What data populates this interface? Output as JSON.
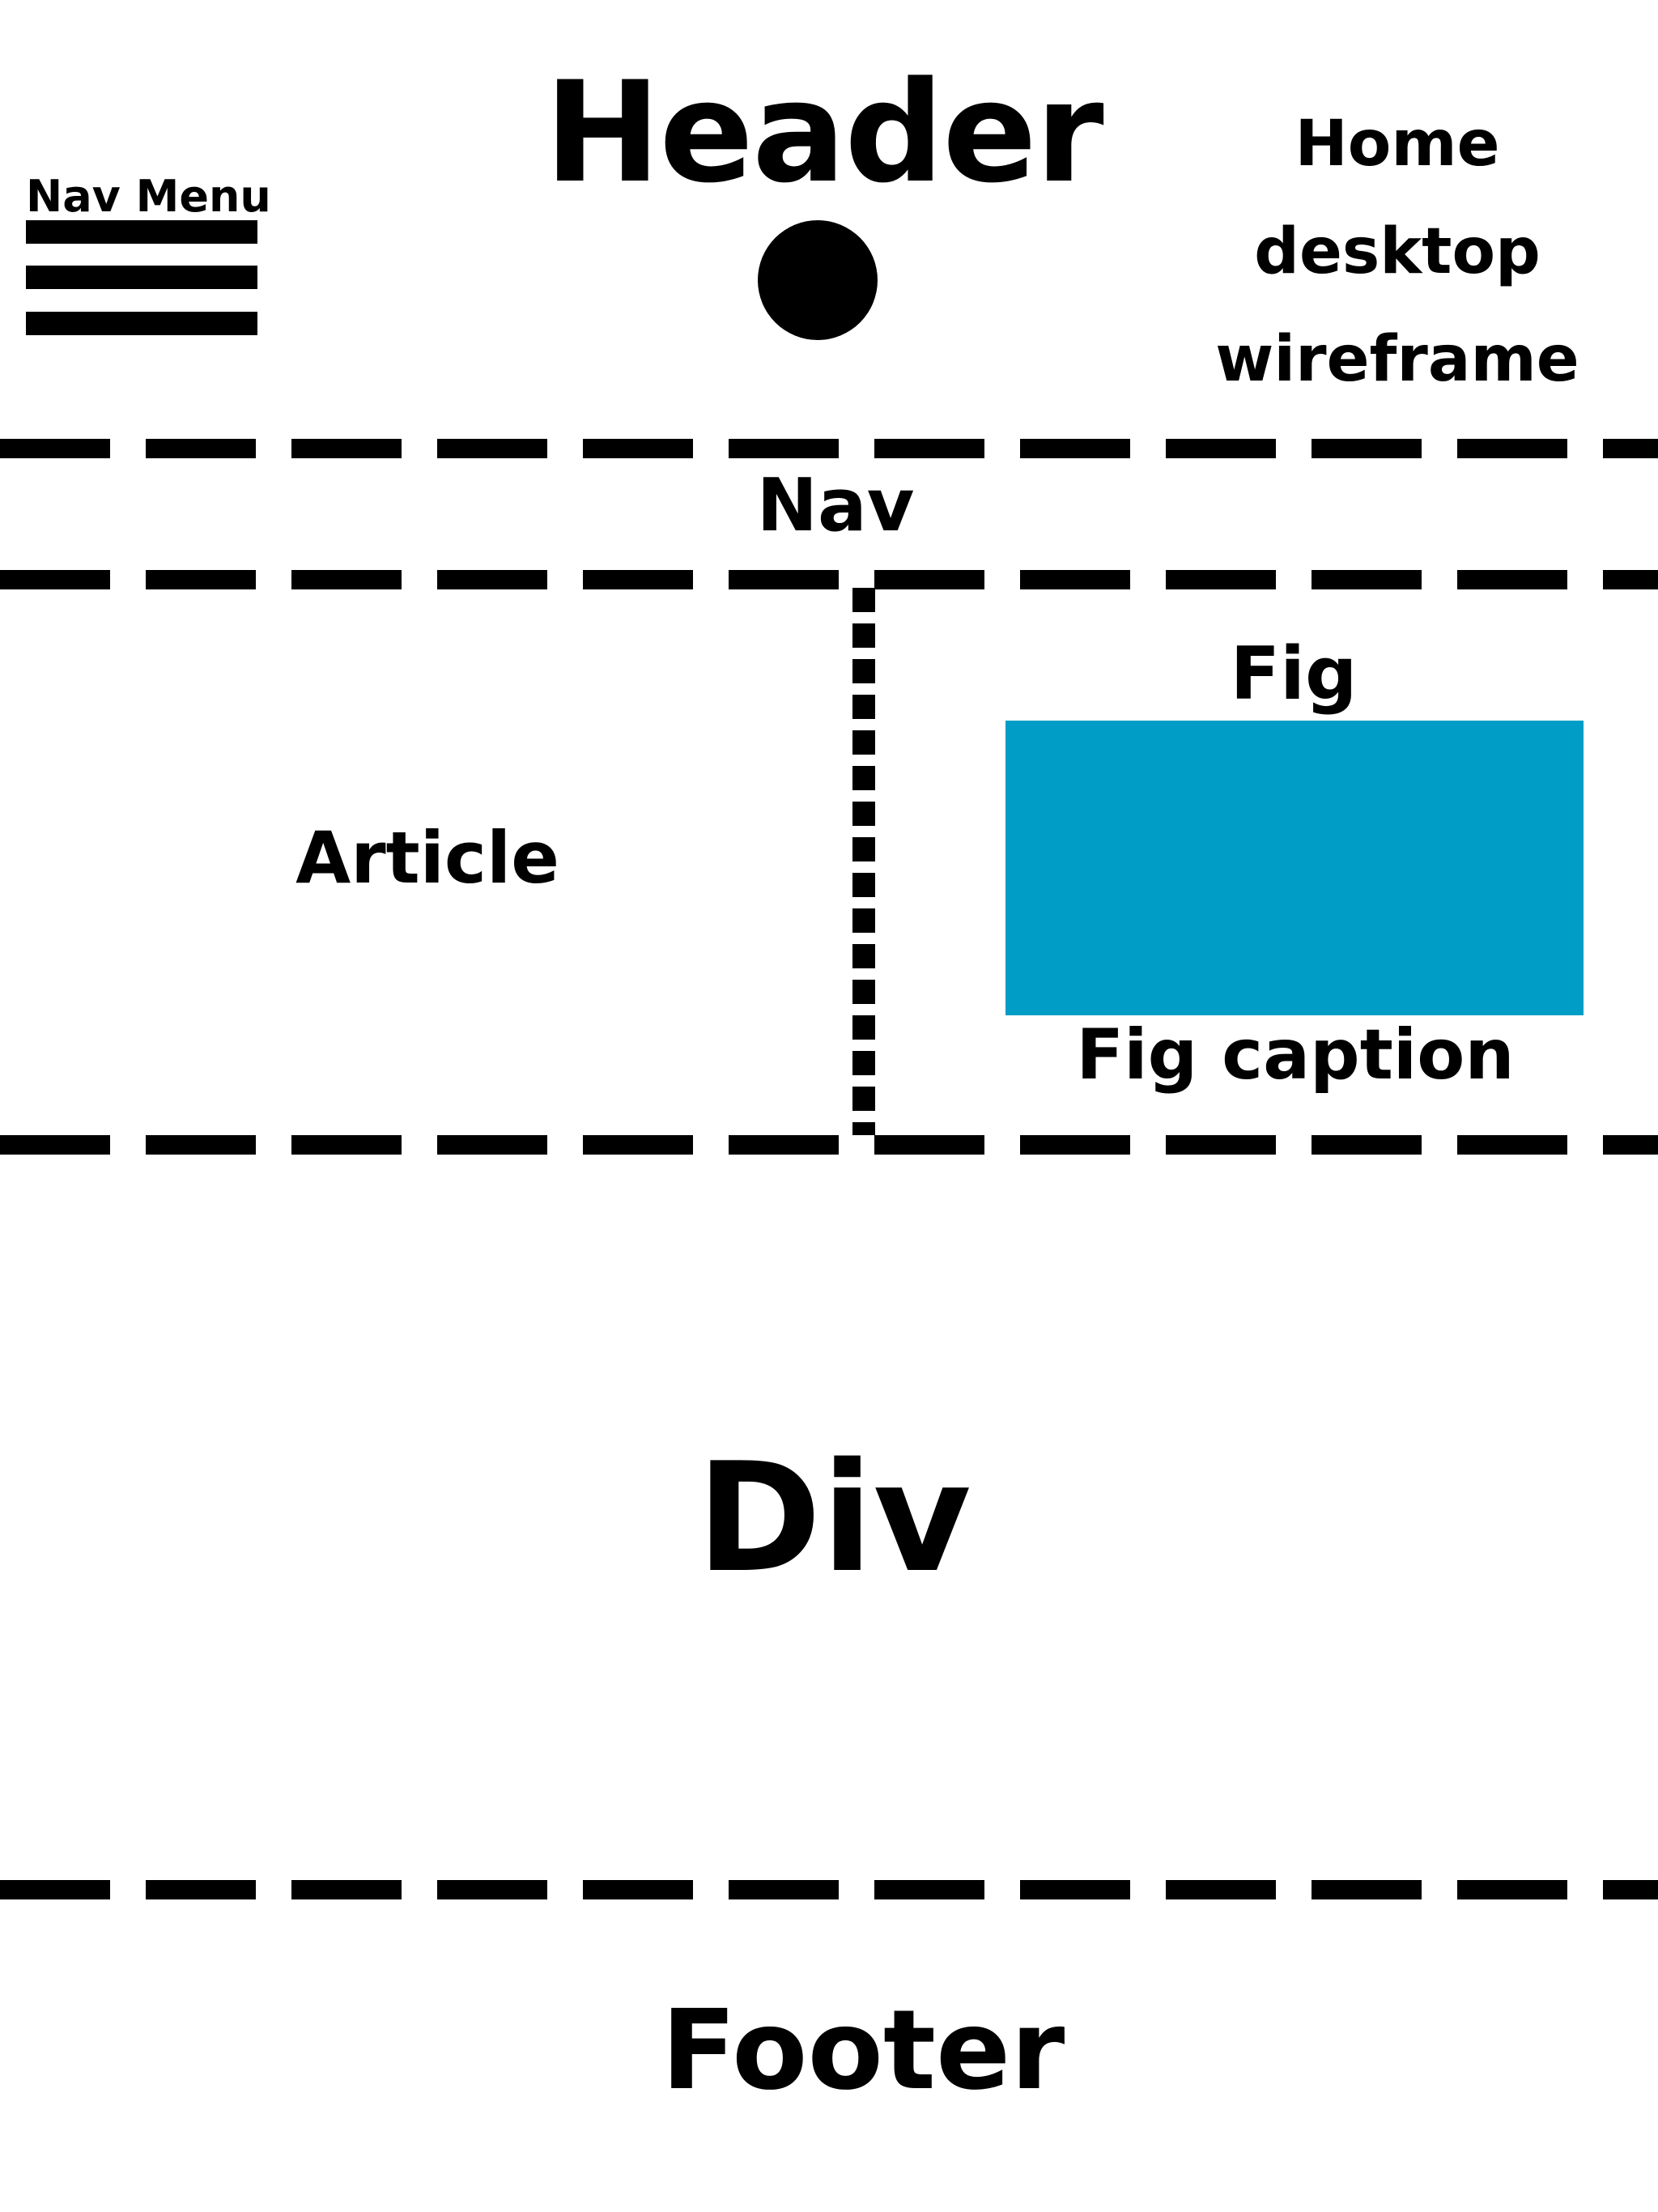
{
  "header": {
    "title": "Header",
    "home_lines": [
      "Home",
      "desktop",
      "wireframe"
    ]
  },
  "nav_menu": {
    "label": "Nav Menu",
    "icon": "hamburger-icon"
  },
  "sections": {
    "nav": "Nav",
    "article": "Article",
    "fig": "Fig",
    "fig_caption": "Fig caption",
    "div": "Div",
    "footer": "Footer"
  },
  "colors": {
    "figure_fill": "#009ec6",
    "ink": "#000000",
    "background": "#ffffff"
  }
}
